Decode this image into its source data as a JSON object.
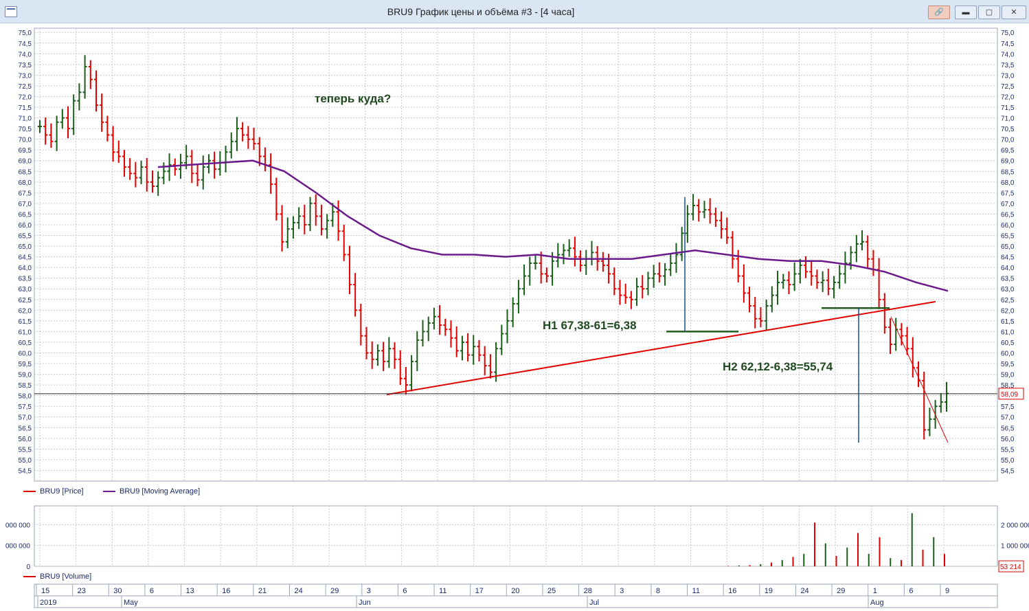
{
  "window": {
    "title": "BRU9 График цены и объёма #3 - [4 часа]",
    "buttons": {
      "pin": "🔗",
      "minimize": "▬",
      "maximize": "▢",
      "close": "✕"
    }
  },
  "legend": {
    "price": "BRU9 [Price]",
    "ma": "BRU9 [Moving Average]",
    "volume": "BRU9 [Volume]"
  },
  "colors": {
    "up": "#1a5c1a",
    "down": "#e00000",
    "ma": "#6a1a8a",
    "trend": "#e00000",
    "annot": "#1f4a1f",
    "measure": "#1a4a8a"
  },
  "annotations": {
    "question": "теперь куда?",
    "h1": "H1 67,38-61=6,38",
    "h2": "H2 62,12-6,38=55,74"
  },
  "chart_data": {
    "type": "line",
    "price_ylim": [
      54.0,
      75.2
    ],
    "price_ticks": [
      "75,0",
      "74,5",
      "74,0",
      "73,5",
      "73,0",
      "72,5",
      "72,0",
      "71,5",
      "71,0",
      "70,5",
      "70,0",
      "69,5",
      "69,0",
      "68,5",
      "68,0",
      "67,5",
      "67,0",
      "66,5",
      "66,0",
      "65,5",
      "65,0",
      "64,5",
      "64,0",
      "63,5",
      "63,0",
      "62,5",
      "62,0",
      "61,5",
      "61,0",
      "60,5",
      "60,0",
      "59,5",
      "59,0",
      "58,5",
      "58,0",
      "57,5",
      "57,0",
      "56,5",
      "56,0",
      "55,5",
      "55,0",
      "54,5"
    ],
    "last_price": "58,09",
    "last_volume": "53 214",
    "volume_ticks_right": [
      "2 000 000",
      "1 000 000",
      "0"
    ],
    "volume_ticks_left": [
      "000 000",
      "000 000",
      "0"
    ],
    "date_ticks": [
      "15",
      "23",
      "30",
      "6",
      "13",
      "16",
      "21",
      "24",
      "29",
      "3",
      "6",
      "11",
      "17",
      "20",
      "25",
      "28",
      "3",
      "8",
      "11",
      "16",
      "19",
      "24",
      "29",
      "1",
      "6",
      "9"
    ],
    "month_labels": [
      "2019",
      "May",
      "Jun",
      "Jul",
      "Aug"
    ],
    "price_close": [
      70.6,
      70.2,
      69.9,
      70.8,
      71.0,
      70.5,
      71.8,
      72.2,
      73.4,
      72.8,
      71.6,
      70.8,
      70.2,
      69.4,
      69.2,
      68.7,
      68.4,
      68.2,
      68.7,
      68.0,
      67.8,
      68.2,
      68.5,
      68.8,
      68.6,
      68.9,
      69.2,
      68.4,
      68.1,
      68.7,
      69.0,
      68.6,
      68.9,
      69.4,
      69.9,
      70.5,
      70.2,
      70.0,
      69.8,
      69.2,
      68.8,
      67.9,
      66.5,
      65.2,
      65.8,
      66.1,
      66.4,
      66.0,
      67.0,
      66.4,
      65.8,
      66.2,
      66.6,
      65.7,
      64.6,
      63.2,
      62.0,
      60.8,
      60.0,
      59.7,
      60.1,
      59.6,
      60.2,
      59.7,
      58.8,
      58.5,
      59.6,
      60.6,
      61.0,
      61.4,
      61.7,
      61.3,
      61.1,
      60.7,
      60.1,
      60.5,
      59.9,
      60.3,
      59.9,
      59.4,
      59.1,
      60.2,
      60.9,
      61.5,
      62.3,
      63.0,
      63.6,
      64.2,
      64.2,
      63.7,
      63.6,
      64.3,
      64.6,
      64.8,
      64.9,
      64.5,
      64.1,
      64.4,
      64.7,
      64.3,
      64.1,
      63.7,
      63.0,
      62.7,
      62.6,
      62.5,
      63.1,
      63.0,
      63.5,
      63.7,
      63.6,
      63.9,
      64.2,
      64.6,
      65.6,
      66.5,
      66.9,
      66.6,
      66.7,
      66.5,
      66.2,
      65.8,
      65.4,
      64.4,
      63.6,
      62.8,
      62.2,
      61.6,
      61.5,
      62.2,
      62.7,
      63.3,
      63.4,
      63.2,
      63.7,
      64.1,
      63.8,
      63.6,
      63.3,
      63.4,
      63.0,
      63.3,
      63.7,
      64.2,
      64.7,
      65.1,
      65.2,
      64.4,
      63.9,
      62.5,
      61.2,
      60.4,
      61.1,
      60.8,
      60.2,
      59.3,
      58.7,
      56.4,
      56.9,
      57.5,
      57.7,
      58.1
    ],
    "ma_values": [
      68.7,
      68.8,
      68.9,
      69.0,
      68.5,
      67.5,
      66.4,
      65.5,
      64.9,
      64.6,
      64.6,
      64.5,
      64.6,
      64.4,
      64.4,
      64.4,
      64.6,
      64.8,
      64.6,
      64.4,
      64.3,
      64.3,
      64.1,
      63.8,
      63.3,
      62.9
    ],
    "volume_bars": [
      0.02,
      0.04,
      0.06,
      0.1,
      0.18,
      0.3,
      0.45,
      0.6,
      2.1,
      1.1,
      0.5,
      0.9,
      1.6,
      0.6,
      1.4,
      0.4,
      0.3,
      2.55,
      0.8,
      1.4,
      0.6
    ]
  }
}
